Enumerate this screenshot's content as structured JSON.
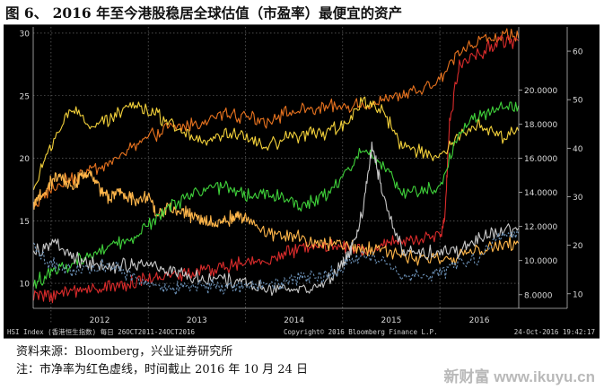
{
  "figure": {
    "title": "图 6、 2016 年至今港股稳居全球估值（市盈率）最便宜的资产",
    "source": "资料来源：Bloomberg，兴业证券研究所",
    "note": "注：市净率为红色虚线，时间截止 2016 年 10 月 24 日",
    "watermark": "新财富 www.ikuyu.cn"
  },
  "chart_data": {
    "type": "line",
    "background": "#000000",
    "grid": true,
    "footer": {
      "left": "HSI Index (香港恒生指数)  每日 26OCT2011-24OCT2016",
      "center": "Copyright© 2016 Bloomberg Finance L.P.",
      "right": "24-Oct-2016 19:42:17"
    },
    "x_range": [
      "2011-10-26",
      "2016-10-24"
    ],
    "x_ticks": [
      "2012",
      "2013",
      "2014",
      "2015",
      "2016"
    ],
    "y_axes": {
      "left": {
        "range": [
          8,
          30.5
        ],
        "ticks": [
          10,
          15,
          20,
          25,
          30
        ]
      },
      "right_inner": {
        "range": [
          7.2,
          23.7
        ],
        "ticks": [
          "8.0000",
          "10.0000",
          "12.0000",
          "14.0000",
          "16.0000",
          "18.0000",
          "20.0000"
        ]
      },
      "right_outer": {
        "range": [
          7,
          65
        ],
        "ticks": [
          10,
          20,
          30,
          40,
          50,
          60
        ]
      }
    },
    "series": [
      {
        "color": "#e8731f",
        "x": [
          2011.82,
          2012.0,
          2012.2,
          2012.4,
          2012.6,
          2012.8,
          2013.0,
          2013.2,
          2013.4,
          2013.6,
          2013.8,
          2014.0,
          2014.2,
          2014.4,
          2014.6,
          2014.8,
          2015.0,
          2015.2,
          2015.4,
          2015.6,
          2015.8,
          2016.0,
          2016.2,
          2016.4,
          2016.6,
          2016.81
        ],
        "y": [
          16.2,
          17.5,
          18.4,
          19.0,
          19.6,
          20.6,
          21.6,
          22.4,
          22.6,
          23.0,
          23.6,
          23.4,
          23.0,
          23.6,
          23.8,
          24.0,
          24.1,
          24.3,
          24.5,
          25.0,
          25.4,
          26.2,
          28.6,
          29.4,
          29.8,
          29.6
        ]
      },
      {
        "color": "#d92b2b",
        "x": [
          2011.82,
          2012.0,
          2012.2,
          2012.4,
          2012.6,
          2012.8,
          2013.0,
          2013.2,
          2013.4,
          2013.6,
          2013.8,
          2014.0,
          2014.2,
          2014.4,
          2014.6,
          2014.8,
          2015.0,
          2015.2,
          2015.4,
          2015.6,
          2015.8,
          2016.0,
          2016.05,
          2016.1,
          2016.2,
          2016.4,
          2016.6,
          2016.81
        ],
        "y": [
          9.0,
          9.1,
          9.3,
          9.6,
          9.8,
          10.0,
          10.3,
          10.6,
          10.8,
          11.0,
          11.3,
          11.6,
          11.9,
          12.3,
          12.8,
          13.0,
          12.9,
          12.6,
          13.0,
          13.3,
          13.5,
          13.8,
          15.0,
          22.8,
          27.5,
          28.4,
          29.3,
          29.4
        ]
      },
      {
        "color": "#f2d03a",
        "x": [
          2011.82,
          2012.0,
          2012.2,
          2012.4,
          2012.6,
          2012.8,
          2013.0,
          2013.2,
          2013.4,
          2013.6,
          2013.8,
          2014.0,
          2014.2,
          2014.4,
          2014.6,
          2014.8,
          2015.0,
          2015.2,
          2015.4,
          2015.6,
          2015.8,
          2016.0,
          2016.2,
          2016.4,
          2016.6,
          2016.81
        ],
        "y": [
          17.5,
          21.0,
          24.0,
          22.5,
          23.0,
          24.5,
          23.8,
          23.0,
          22.0,
          21.2,
          22.0,
          21.6,
          20.8,
          21.5,
          21.8,
          22.0,
          22.6,
          24.5,
          24.0,
          21.0,
          20.5,
          20.2,
          21.6,
          22.8,
          21.6,
          22.2
        ]
      },
      {
        "color": "#ffb64a",
        "x": [
          2011.82,
          2011.9,
          2012.0,
          2012.1,
          2012.2,
          2012.3,
          2012.4,
          2012.5,
          2012.6,
          2012.7,
          2012.8,
          2012.9,
          2013.0,
          2013.1,
          2013.2,
          2013.3,
          2013.4,
          2013.5,
          2013.6,
          2013.7,
          2013.8,
          2013.9,
          2014.0,
          2014.2,
          2014.4,
          2014.6,
          2014.8,
          2015.0,
          2015.2,
          2015.4,
          2015.6,
          2015.8,
          2016.0,
          2016.2,
          2016.4,
          2016.6,
          2016.81
        ],
        "y": [
          16.2,
          17.0,
          18.0,
          18.6,
          17.8,
          18.4,
          18.8,
          17.6,
          16.8,
          17.2,
          17.0,
          16.6,
          16.9,
          15.5,
          16.0,
          15.8,
          15.5,
          15.2,
          15.0,
          14.8,
          15.0,
          15.4,
          15.2,
          14.2,
          13.8,
          13.6,
          13.2,
          13.0,
          12.8,
          12.6,
          12.3,
          12.0,
          11.8,
          12.2,
          12.6,
          13.0,
          13.2
        ]
      },
      {
        "color": "#3fd13a",
        "x": [
          2011.82,
          2012.0,
          2012.2,
          2012.4,
          2012.6,
          2012.8,
          2013.0,
          2013.2,
          2013.4,
          2013.6,
          2013.8,
          2014.0,
          2014.2,
          2014.4,
          2014.6,
          2014.8,
          2015.0,
          2015.2,
          2015.4,
          2015.6,
          2015.8,
          2016.0,
          2016.2,
          2016.4,
          2016.6,
          2016.81
        ],
        "y": [
          10.0,
          10.8,
          11.4,
          12.2,
          12.8,
          13.4,
          14.6,
          16.0,
          17.0,
          17.6,
          17.8,
          17.0,
          17.2,
          16.8,
          16.2,
          17.0,
          18.5,
          20.8,
          19.5,
          17.2,
          17.4,
          17.6,
          22.0,
          23.5,
          24.0,
          24.2
        ]
      },
      {
        "color": "#c8c8c8",
        "x": [
          2011.82,
          2012.0,
          2012.2,
          2012.4,
          2012.6,
          2012.8,
          2013.0,
          2013.2,
          2013.4,
          2013.6,
          2013.8,
          2014.0,
          2014.2,
          2014.4,
          2014.6,
          2014.8,
          2015.0,
          2015.1,
          2015.2,
          2015.3,
          2015.4,
          2015.6,
          2015.8,
          2016.0,
          2016.2,
          2016.4,
          2016.6,
          2016.81
        ],
        "y": [
          12.5,
          13.2,
          12.2,
          11.5,
          11.2,
          11.4,
          11.7,
          11.0,
          10.6,
          10.3,
          10.2,
          10.0,
          9.6,
          9.4,
          9.6,
          9.9,
          11.5,
          13.0,
          15.5,
          21.0,
          17.5,
          12.8,
          12.3,
          12.6,
          12.6,
          13.8,
          14.1,
          14.4
        ]
      },
      {
        "color": "#6a8fb5",
        "dashed": true,
        "x": [
          2011.82,
          2012.0,
          2012.2,
          2012.4,
          2012.6,
          2012.8,
          2013.0,
          2013.2,
          2013.4,
          2013.6,
          2013.8,
          2014.0,
          2014.2,
          2014.4,
          2014.6,
          2014.8,
          2015.0,
          2015.2,
          2015.4,
          2015.6,
          2015.8,
          2016.0,
          2016.2,
          2016.4,
          2016.6,
          2016.81
        ],
        "y": [
          12.8,
          11.6,
          11.0,
          11.2,
          11.6,
          10.7,
          9.8,
          9.7,
          9.7,
          9.8,
          9.6,
          9.6,
          9.9,
          10.2,
          10.6,
          10.4,
          11.3,
          12.2,
          12.0,
          10.6,
          10.7,
          10.9,
          11.6,
          12.1,
          13.6,
          14.0
        ]
      }
    ]
  }
}
